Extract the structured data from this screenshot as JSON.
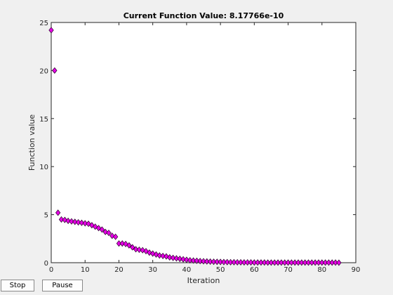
{
  "chart_data": {
    "type": "scatter",
    "title": "Current Function Value: 8.17766e-10",
    "xlabel": "Iteration",
    "ylabel": "Function value",
    "xlim": [
      0,
      90
    ],
    "ylim": [
      0,
      25
    ],
    "xticks": [
      0,
      10,
      20,
      30,
      40,
      50,
      60,
      70,
      80,
      90
    ],
    "yticks": [
      0,
      5,
      10,
      15,
      20,
      25
    ],
    "grid": false,
    "marker": "diamond",
    "marker_color": "#e600e6",
    "series": [
      {
        "x": [
          0,
          1,
          2,
          3,
          4,
          5,
          6,
          7,
          8,
          9,
          10,
          11,
          12,
          13,
          14,
          15,
          16,
          17,
          18,
          19,
          20,
          21,
          22,
          23,
          24,
          25,
          26,
          27,
          28,
          29,
          30,
          31,
          32,
          33,
          34,
          35,
          36,
          37,
          38,
          39,
          40,
          41,
          42,
          43,
          44,
          45,
          46,
          47,
          48,
          49,
          50,
          51,
          52,
          53,
          54,
          55,
          56,
          57,
          58,
          59,
          60,
          61,
          62,
          63,
          64,
          65,
          66,
          67,
          68,
          69,
          70,
          71,
          72,
          73,
          74,
          75,
          76,
          77,
          78,
          79,
          80,
          81,
          82,
          83,
          84,
          85
        ],
        "y": [
          24.2,
          20.0,
          5.2,
          4.5,
          4.45,
          4.35,
          4.3,
          4.25,
          4.2,
          4.15,
          4.1,
          4.05,
          3.9,
          3.75,
          3.6,
          3.45,
          3.2,
          3.1,
          2.8,
          2.7,
          2.0,
          2.0,
          1.95,
          1.8,
          1.6,
          1.4,
          1.35,
          1.3,
          1.2,
          1.05,
          0.95,
          0.85,
          0.75,
          0.7,
          0.65,
          0.55,
          0.5,
          0.45,
          0.4,
          0.35,
          0.3,
          0.25,
          0.22,
          0.2,
          0.17,
          0.15,
          0.13,
          0.11,
          0.1,
          0.09,
          0.08,
          0.07,
          0.06,
          0.05,
          0.05,
          0.04,
          0.04,
          0.03,
          0.03,
          0.03,
          0.02,
          0.02,
          0.02,
          0.02,
          0.01,
          0.01,
          0.01,
          0.01,
          0.01,
          0.01,
          0.01,
          0.01,
          0.01,
          0.01,
          0.01,
          0.01,
          0.01,
          0.01,
          0.01,
          0.01,
          0.01,
          0.01,
          0.01,
          0.01,
          0.01,
          0.0
        ]
      }
    ]
  },
  "controls": {
    "stop_label": "Stop",
    "pause_label": "Pause"
  }
}
